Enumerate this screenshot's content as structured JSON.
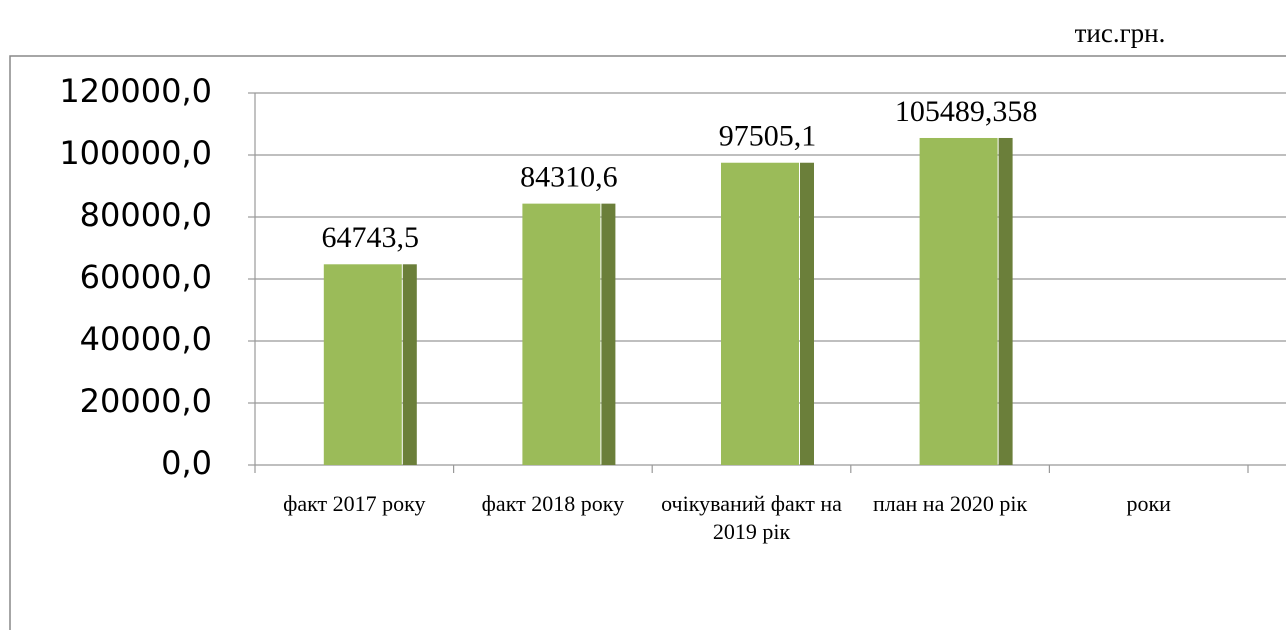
{
  "chart_data": {
    "type": "bar",
    "unit_label": "тис.грн.",
    "categories": [
      "факт 2017 року",
      "факт 2018 року",
      "очікуваний факт на  2019 рік",
      "план на 2020 рік",
      "роки"
    ],
    "values": [
      64743.5,
      84310.6,
      97505.1,
      105489.358,
      null
    ],
    "value_labels": [
      "64743,5",
      "84310,6",
      "97505,1",
      "105489,358",
      null
    ],
    "color": "#9bbb59",
    "shade_color": "#6b7f3a",
    "ylim": [
      0,
      120000
    ],
    "yticks": [
      {
        "value": 0,
        "label": "0,0"
      },
      {
        "value": 20000,
        "label": "20000,0"
      },
      {
        "value": 40000,
        "label": "40000,0"
      },
      {
        "value": 60000,
        "label": "60000,0"
      },
      {
        "value": 80000,
        "label": "80000,0"
      },
      {
        "value": 100000,
        "label": "100000,0"
      },
      {
        "value": 120000,
        "label": "120000,0"
      }
    ],
    "grid": true
  }
}
